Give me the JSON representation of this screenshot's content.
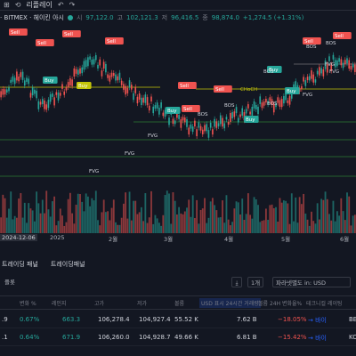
{
  "toolbar": {
    "replay_label": "리플레이"
  },
  "legend": {
    "symbol": "· BITMEX · 헤이킨 아시",
    "open_label": "시",
    "open": "97,122.0",
    "high_label": "고",
    "high": "102,121.3",
    "low_label": "저",
    "low": "96,416.5",
    "close_label": "종",
    "close": "98,874.0",
    "change": "+1,274.5 (+1.31%)"
  },
  "annotations": {
    "signals": [
      {
        "type": "Sell",
        "day": 8
      },
      {
        "type": "Sell",
        "day": 19
      },
      {
        "type": "Sell",
        "day": 30
      },
      {
        "type": "Sell",
        "day": 45
      },
      {
        "type": "Buy",
        "day": 23
      },
      {
        "type": "Buy",
        "day": 31
      },
      {
        "type": "Sell",
        "day": 75
      },
      {
        "type": "Buy",
        "day": 70
      },
      {
        "type": "Sell",
        "day": 96
      },
      {
        "type": "Buy",
        "day": 102
      },
      {
        "type": "Buy",
        "day": 112
      },
      {
        "type": "Sell",
        "day": 112
      },
      {
        "type": "Sell",
        "day": 140
      },
      {
        "type": "Buy",
        "day": 125
      },
      {
        "type": "Sell",
        "day": 169
      }
    ],
    "fvg_label": "FVG",
    "bos_label": "BOS",
    "choch_label": "CHoCH"
  },
  "xaxis": {
    "labels": [
      "2024-12-06",
      "2025",
      "2월",
      "3월",
      "4월",
      "5월",
      "6월"
    ]
  },
  "panel_tabs": [
    "트레이딩 패널",
    "트레이딩패널"
  ],
  "toolrow": {
    "left": "플롯",
    "filter": "파라넷별도 in: USD",
    "select": "1개"
  },
  "table": {
    "headers": [
      "",
      "변화 %",
      "레인지",
      "고가",
      "저가",
      "볼륨",
      "USD 표시 24시간 거래량",
      "볼륨 24H 변화율%",
      "테크니컬 레이팅"
    ],
    "rows": [
      {
        "c0": ".9",
        "chg": "0.67%",
        "range": "663.3",
        "high": "106,278.4",
        "low": "104,927.4",
        "vol": "55.52 K",
        "usd": "7.62 B",
        "vchg": "−18.05%",
        "rating": "→ 바이",
        "end": "BB"
      },
      {
        "c0": ".1",
        "chg": "0.64%",
        "range": "671.9",
        "high": "106,260.0",
        "low": "104,928.7",
        "vol": "49.66 K",
        "usd": "6.81 B",
        "vchg": "−15.42%",
        "rating": "→ 바이",
        "end": "KO"
      },
      {
        "c0": "",
        "chg": "",
        "range": "",
        "high": "",
        "low": "",
        "vol": "",
        "usd": "",
        "vchg": "",
        "rating": "",
        "end": ""
      }
    ]
  },
  "colors": {
    "up": "#26a69a",
    "down": "#ef5350",
    "bg": "#131722",
    "accent": "#2962ff",
    "yellow": "#c5c50a"
  }
}
